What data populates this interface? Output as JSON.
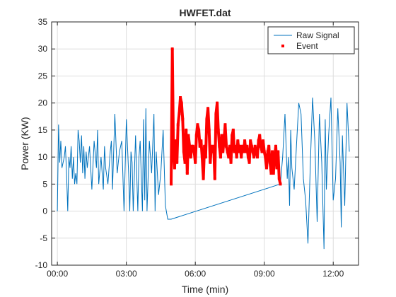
{
  "chart_data": {
    "type": "line",
    "title": "HWFET.dat",
    "xlabel": "Time (min)",
    "ylabel": "Power (KW)",
    "xlim": [
      -0.25,
      13.1
    ],
    "ylim": [
      -10,
      35
    ],
    "xticks": [
      0,
      3,
      6,
      9,
      12
    ],
    "xtick_labels": [
      "00:00",
      "03:00",
      "06:00",
      "09:00",
      "12:00"
    ],
    "yticks": [
      -10,
      -5,
      0,
      5,
      10,
      15,
      20,
      25,
      30,
      35
    ],
    "ytick_labels": [
      "-10",
      "-5",
      "0",
      "5",
      "10",
      "15",
      "20",
      "25",
      "30",
      "35"
    ],
    "grid": true,
    "legend_position": "top-right",
    "series": [
      {
        "name": "Raw Signal",
        "style": "line",
        "color": "#0072BD",
        "x": [
          0,
          0.05,
          0.1,
          0.15,
          0.2,
          0.3,
          0.35,
          0.4,
          0.45,
          0.5,
          0.55,
          0.6,
          0.65,
          0.7,
          0.75,
          0.8,
          0.85,
          0.9,
          0.95,
          1.0,
          1.05,
          1.1,
          1.15,
          1.2,
          1.25,
          1.3,
          1.4,
          1.5,
          1.6,
          1.7,
          1.75,
          1.8,
          1.9,
          2.0,
          2.05,
          2.1,
          2.2,
          2.3,
          2.35,
          2.4,
          2.5,
          2.6,
          2.7,
          2.8,
          2.9,
          3.0,
          3.1,
          3.15,
          3.2,
          3.25,
          3.3,
          3.4,
          3.5,
          3.55,
          3.6,
          3.7,
          3.75,
          3.8,
          3.85,
          3.9,
          4.0,
          4.1,
          4.2,
          4.25,
          4.3,
          4.4,
          4.5,
          4.6,
          4.7,
          4.8,
          4.85,
          4.9,
          4.95,
          9.7,
          9.8,
          9.9,
          10.0,
          10.05,
          10.1,
          10.15,
          10.2,
          10.3,
          10.4,
          10.5,
          10.6,
          10.7,
          10.8,
          10.9,
          11.0,
          11.1,
          11.2,
          11.3,
          11.4,
          11.5,
          11.6,
          11.65,
          11.7,
          11.8,
          11.9,
          12.0,
          12.1,
          12.2,
          12.3,
          12.35,
          12.4,
          12.5,
          12.6,
          12.7
        ],
        "y": [
          0,
          16,
          9,
          13,
          8,
          10,
          12,
          7,
          0,
          10,
          8,
          12,
          6,
          10,
          5,
          7,
          5,
          15,
          13,
          9,
          14,
          7,
          12,
          6,
          11,
          8,
          12,
          4,
          13,
          8,
          15,
          5,
          10,
          4,
          12,
          8,
          5,
          11,
          13,
          4,
          18,
          7,
          11,
          13,
          0,
          17,
          7,
          0,
          11,
          9,
          0,
          14,
          0,
          10,
          13,
          0,
          17,
          2,
          19,
          0,
          13,
          7,
          18,
          0,
          11,
          3,
          7,
          15,
          1,
          -1.5,
          -1.5,
          -1.5,
          -1.5,
          5,
          10,
          18,
          6,
          10,
          1,
          15,
          8,
          4,
          12,
          20,
          18,
          6,
          2,
          -6,
          8,
          21,
          13,
          -2,
          18,
          9,
          -7,
          17,
          4,
          14,
          21,
          2,
          6,
          19,
          9,
          -3,
          14,
          1,
          20,
          11
        ],
        "note_x_range": [
          0,
          12.7
        ]
      },
      {
        "name": "Event",
        "style": "marker",
        "color": "#FF0000",
        "x": [
          4.95,
          5.0,
          5.05,
          5.1,
          5.15,
          5.2,
          5.25,
          5.3,
          5.35,
          5.4,
          5.45,
          5.5,
          5.55,
          5.6,
          5.65,
          5.7,
          5.75,
          5.8,
          5.85,
          5.9,
          5.95,
          6.0,
          6.05,
          6.1,
          6.15,
          6.2,
          6.25,
          6.3,
          6.35,
          6.4,
          6.45,
          6.5,
          6.55,
          6.6,
          6.65,
          6.7,
          6.75,
          6.8,
          6.85,
          6.9,
          6.95,
          7.0,
          7.05,
          7.1,
          7.15,
          7.2,
          7.25,
          7.3,
          7.35,
          7.4,
          7.45,
          7.5,
          7.55,
          7.6,
          7.65,
          7.7,
          7.75,
          7.8,
          7.85,
          7.9,
          7.95,
          8.0,
          8.05,
          8.1,
          8.15,
          8.2,
          8.25,
          8.3,
          8.35,
          8.4,
          8.45,
          8.5,
          8.55,
          8.6,
          8.65,
          8.7,
          8.75,
          8.8,
          8.85,
          8.9,
          8.95,
          9.0,
          9.05,
          9.1,
          9.15,
          9.2,
          9.25,
          9.3,
          9.35,
          9.4,
          9.45,
          9.5,
          9.55,
          9.6,
          9.65,
          9.7
        ],
        "y": [
          5,
          30,
          11,
          8,
          13,
          9,
          16,
          18,
          21,
          20,
          17,
          11,
          9,
          15,
          7,
          14,
          12,
          10,
          12,
          12,
          11,
          9,
          14,
          16,
          15,
          12,
          13,
          10,
          6,
          12,
          10,
          17,
          19,
          15,
          9,
          12,
          11,
          12,
          6,
          18,
          20,
          15,
          12,
          10,
          14,
          11,
          13,
          16,
          12,
          11,
          10,
          12,
          9,
          14,
          15,
          11,
          12,
          10,
          13,
          11,
          12,
          10,
          12,
          11,
          13,
          11,
          12,
          10,
          9,
          13,
          12,
          11,
          10,
          12,
          11,
          10,
          13,
          14,
          12,
          11,
          13,
          11,
          10,
          8,
          11,
          12,
          9,
          7,
          11,
          7,
          10,
          12,
          8,
          11,
          6,
          5
        ]
      }
    ]
  }
}
